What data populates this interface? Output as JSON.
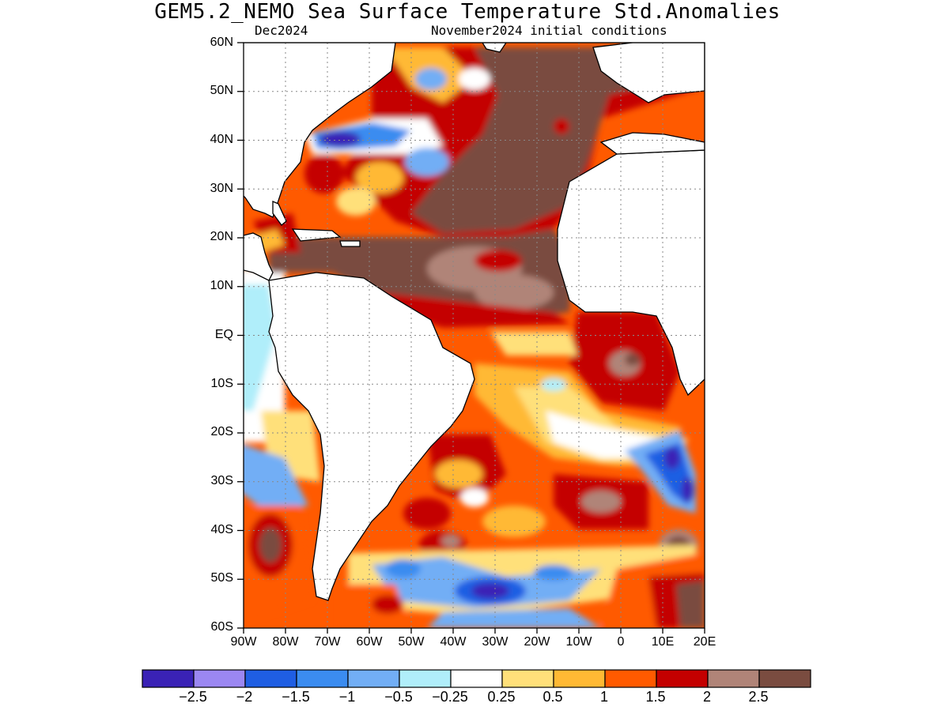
{
  "title": "GEM5.2_NEMO Sea Surface Temperature Std.Anomalies",
  "subtitle_left": "Dec2024",
  "subtitle_right": "November2024 initial conditions",
  "lat_labels": [
    "60N",
    "50N",
    "40N",
    "30N",
    "20N",
    "10N",
    "EQ",
    "10S",
    "20S",
    "30S",
    "40S",
    "50S",
    "60S"
  ],
  "lon_labels": [
    "90W",
    "80W",
    "70W",
    "60W",
    "50W",
    "40W",
    "30W",
    "20W",
    "10W",
    "0",
    "10E",
    "20E"
  ],
  "legend": {
    "colors": [
      "#3a22b6",
      "#9b87f2",
      "#1f5ee3",
      "#3b8cf0",
      "#72aef5",
      "#b0eefa",
      "#ffffff",
      "#ffe07a",
      "#ffb934",
      "#ff5a00",
      "#c40000",
      "#b08478",
      "#7a4c40"
    ],
    "labels": [
      "−2.5",
      "−2",
      "−1.5",
      "−1",
      "−0.5",
      "−0.25",
      "0.25",
      "0.5",
      "1",
      "1.5",
      "2",
      "2.5"
    ]
  }
}
